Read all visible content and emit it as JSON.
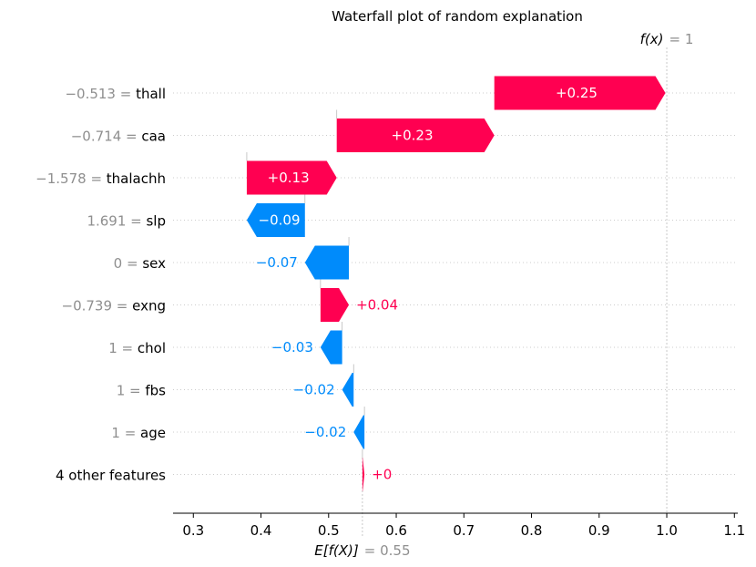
{
  "chart_data": {
    "type": "waterfall",
    "title": "Waterfall plot of random explanation",
    "base_value": 0.55,
    "final_value": 1,
    "base_label": "E[f(X)]",
    "base_value_text": "= 0.55",
    "final_label": "f(x)",
    "final_value_text": "= 1",
    "xlim": [
      0.27,
      1.105
    ],
    "x_ticks": [
      0.3,
      0.4,
      0.5,
      0.6,
      0.7,
      0.8,
      0.9,
      1.0,
      1.1
    ],
    "x_tick_labels": [
      "0.3",
      "0.4",
      "0.5",
      "0.6",
      "0.7",
      "0.8",
      "0.9",
      "1.0",
      "1.1"
    ],
    "features": [
      {
        "value": "−0.513 =",
        "name": "thall",
        "label": "+0.25",
        "start": 0.745,
        "end": 0.998
      },
      {
        "value": "−0.714 =",
        "name": "caa",
        "label": "+0.23",
        "start": 0.512,
        "end": 0.745
      },
      {
        "value": "−1.578 =",
        "name": "thalachh",
        "label": "+0.13",
        "start": 0.379,
        "end": 0.512
      },
      {
        "value": "1.691 =",
        "name": "slp",
        "label": "−0.09",
        "start": 0.465,
        "end": 0.379
      },
      {
        "value": "0 =",
        "name": "sex",
        "label": "−0.07",
        "start": 0.53,
        "end": 0.465
      },
      {
        "value": "−0.739 =",
        "name": "exng",
        "label": "+0.04",
        "start": 0.488,
        "end": 0.53
      },
      {
        "value": "1 =",
        "name": "chol",
        "label": "−0.03",
        "start": 0.52,
        "end": 0.488
      },
      {
        "value": "1 =",
        "name": "fbs",
        "label": "−0.02",
        "start": 0.537,
        "end": 0.52
      },
      {
        "value": "1 =",
        "name": "age",
        "label": "−0.02",
        "start": 0.553,
        "end": 0.537
      },
      {
        "value": "",
        "name": "4 other features",
        "label": "+0",
        "start": 0.55,
        "end": 0.553
      }
    ],
    "colors": {
      "positive": "#ff0051",
      "negative": "#008bfb",
      "value_text": "#8f8f8f"
    }
  }
}
